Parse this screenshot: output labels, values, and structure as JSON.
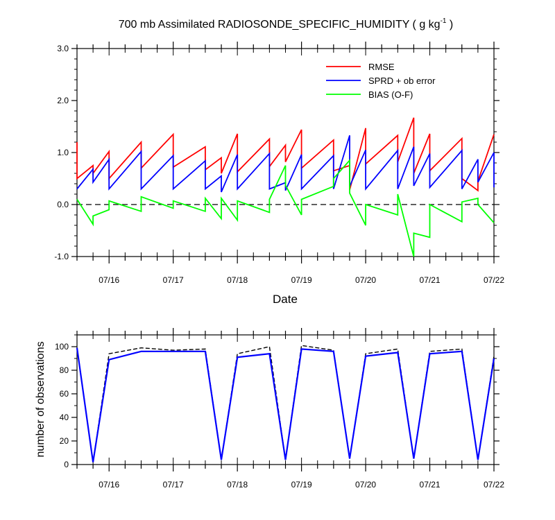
{
  "title": "700 mb Assimilated RADIOSONDE_SPECIFIC_HUMIDITY ( g kg",
  "title_sup": "-1",
  "title_end": " )",
  "xlabel": "Date",
  "ylabel_bottom": "number of observations",
  "date_ticks": [
    "07/16",
    "07/17",
    "07/18",
    "07/19",
    "07/20",
    "07/21",
    "07/22"
  ],
  "colors": {
    "rmse": "#ff0000",
    "sprd": "#0000ff",
    "bias": "#00ff00",
    "obs_used": "#0000ff",
    "obs_poss": "#000000"
  },
  "chart_data": [
    {
      "type": "line",
      "title": "700 mb Assimilated RADIOSONDE_SPECIFIC_HUMIDITY ( g kg-1 )",
      "xlabel": "Date",
      "ylabel": "",
      "xlim": [
        15.5,
        22.0
      ],
      "ylim": [
        -1.0,
        3.0
      ],
      "yticks": [
        -1.0,
        0.0,
        1.0,
        2.0,
        3.0
      ],
      "ytick_labels": [
        "-1.0",
        "0.0",
        "1.0",
        "2.0",
        "3.0"
      ],
      "zero_line": true,
      "legend": [
        "RMSE",
        "SPRD + ob error",
        "BIAS (O-F)"
      ],
      "legend_position": "top-right",
      "series": [
        {
          "name": "RMSE",
          "key": "rmse",
          "points": [
            [
              15.5,
              1.2
            ],
            [
              15.5,
              0.5
            ],
            [
              15.75,
              0.75
            ],
            [
              15.75,
              0.6
            ],
            [
              16.0,
              1.02
            ],
            [
              16.0,
              0.5
            ],
            [
              16.5,
              1.2
            ],
            [
              16.5,
              0.7
            ],
            [
              17.0,
              1.35
            ],
            [
              17.0,
              0.72
            ],
            [
              17.5,
              1.11
            ],
            [
              17.5,
              0.67
            ],
            [
              17.75,
              0.9
            ],
            [
              17.75,
              0.6
            ],
            [
              18.0,
              1.36
            ],
            [
              18.0,
              0.63
            ],
            [
              18.5,
              1.26
            ],
            [
              18.5,
              0.73
            ],
            [
              18.75,
              1.14
            ],
            [
              18.75,
              0.82
            ],
            [
              19.0,
              1.44
            ],
            [
              19.0,
              0.7
            ],
            [
              19.5,
              1.24
            ],
            [
              19.5,
              0.65
            ],
            [
              19.75,
              0.75
            ],
            [
              19.75,
              0.28
            ],
            [
              20.0,
              1.47
            ],
            [
              20.0,
              0.78
            ],
            [
              20.5,
              1.33
            ],
            [
              20.5,
              0.82
            ],
            [
              20.75,
              1.67
            ],
            [
              20.75,
              0.6
            ],
            [
              21.0,
              1.36
            ],
            [
              21.0,
              0.65
            ],
            [
              21.5,
              1.27
            ],
            [
              21.5,
              0.5
            ],
            [
              21.75,
              0.27
            ],
            [
              21.75,
              0.45
            ],
            [
              22.0,
              1.35
            ]
          ]
        },
        {
          "name": "SPRD + ob error",
          "key": "sprd",
          "points": [
            [
              15.5,
              0.3
            ],
            [
              15.75,
              0.68
            ],
            [
              15.75,
              0.43
            ],
            [
              16.0,
              0.87
            ],
            [
              16.0,
              0.3
            ],
            [
              16.5,
              1.02
            ],
            [
              16.5,
              0.3
            ],
            [
              17.0,
              0.94
            ],
            [
              17.0,
              0.3
            ],
            [
              17.5,
              0.84
            ],
            [
              17.5,
              0.3
            ],
            [
              17.75,
              0.55
            ],
            [
              17.75,
              0.24
            ],
            [
              18.0,
              0.96
            ],
            [
              18.0,
              0.3
            ],
            [
              18.5,
              0.98
            ],
            [
              18.5,
              0.3
            ],
            [
              18.75,
              0.42
            ],
            [
              18.75,
              0.27
            ],
            [
              19.0,
              0.96
            ],
            [
              19.0,
              0.3
            ],
            [
              19.5,
              0.94
            ],
            [
              19.5,
              0.3
            ],
            [
              19.75,
              1.33
            ],
            [
              19.75,
              0.35
            ],
            [
              20.0,
              1.05
            ],
            [
              20.0,
              0.3
            ],
            [
              20.5,
              1.04
            ],
            [
              20.5,
              0.3
            ],
            [
              20.75,
              1.11
            ],
            [
              20.75,
              0.36
            ],
            [
              21.0,
              0.98
            ],
            [
              21.0,
              0.33
            ],
            [
              21.5,
              1.04
            ],
            [
              21.5,
              0.3
            ],
            [
              21.75,
              0.87
            ],
            [
              21.75,
              0.43
            ],
            [
              22.0,
              1.0
            ],
            [
              22.0,
              0.33
            ]
          ]
        },
        {
          "name": "BIAS (O-F)",
          "key": "bias",
          "points": [
            [
              15.5,
              0.1
            ],
            [
              15.75,
              -0.38
            ],
            [
              15.75,
              -0.22
            ],
            [
              16.0,
              -0.1
            ],
            [
              16.0,
              0.07
            ],
            [
              16.5,
              -0.13
            ],
            [
              16.5,
              0.15
            ],
            [
              17.0,
              -0.07
            ],
            [
              17.0,
              0.07
            ],
            [
              17.5,
              -0.13
            ],
            [
              17.5,
              0.12
            ],
            [
              17.75,
              -0.27
            ],
            [
              17.75,
              0.12
            ],
            [
              18.0,
              -0.3
            ],
            [
              18.0,
              0.07
            ],
            [
              18.5,
              -0.15
            ],
            [
              18.5,
              0.1
            ],
            [
              18.75,
              0.75
            ],
            [
              18.75,
              0.37
            ],
            [
              19.0,
              -0.2
            ],
            [
              19.0,
              0.1
            ],
            [
              19.5,
              0.35
            ],
            [
              19.5,
              0.5
            ],
            [
              19.75,
              0.85
            ],
            [
              19.75,
              0.22
            ],
            [
              20.0,
              -0.4
            ],
            [
              20.0,
              0.0
            ],
            [
              20.5,
              -0.2
            ],
            [
              20.5,
              0.2
            ],
            [
              20.75,
              -1.0
            ],
            [
              20.75,
              -0.55
            ],
            [
              21.0,
              -0.63
            ],
            [
              21.0,
              0.0
            ],
            [
              21.5,
              -0.33
            ],
            [
              21.5,
              0.05
            ],
            [
              21.75,
              0.12
            ],
            [
              21.75,
              0.0
            ],
            [
              22.0,
              -0.35
            ]
          ]
        }
      ]
    },
    {
      "type": "line",
      "title": "",
      "xlabel": "",
      "ylabel": "number of observations",
      "xlim": [
        15.5,
        22.0
      ],
      "ylim": [
        0,
        110
      ],
      "yticks": [
        0,
        20,
        40,
        60,
        80,
        100
      ],
      "ytick_labels": [
        "0",
        "20",
        "40",
        "60",
        "80",
        "100"
      ],
      "series": [
        {
          "name": "possible",
          "key": "obs_poss",
          "dashed": true,
          "points": [
            [
              15.5,
              99
            ],
            [
              15.75,
              2
            ],
            [
              16.0,
              94
            ],
            [
              16.5,
              99
            ],
            [
              17.0,
              97
            ],
            [
              17.5,
              98
            ],
            [
              17.75,
              4
            ],
            [
              18.0,
              94
            ],
            [
              18.5,
              100
            ],
            [
              18.75,
              4
            ],
            [
              19.0,
              101
            ],
            [
              19.5,
              97
            ],
            [
              19.75,
              5
            ],
            [
              20.0,
              94
            ],
            [
              20.5,
              98
            ],
            [
              20.75,
              5
            ],
            [
              21.0,
              96
            ],
            [
              21.5,
              98
            ],
            [
              21.75,
              4
            ],
            [
              22.0,
              92
            ]
          ]
        },
        {
          "name": "used",
          "key": "obs_used",
          "dashed": false,
          "points": [
            [
              15.5,
              99
            ],
            [
              15.75,
              2
            ],
            [
              16.0,
              89
            ],
            [
              16.5,
              96
            ],
            [
              17.0,
              96
            ],
            [
              17.5,
              96
            ],
            [
              17.75,
              4
            ],
            [
              18.0,
              91
            ],
            [
              18.5,
              94
            ],
            [
              18.75,
              4
            ],
            [
              19.0,
              98
            ],
            [
              19.5,
              96
            ],
            [
              19.75,
              5
            ],
            [
              20.0,
              92
            ],
            [
              20.5,
              95
            ],
            [
              20.75,
              5
            ],
            [
              21.0,
              94
            ],
            [
              21.5,
              96
            ],
            [
              21.75,
              4
            ],
            [
              22.0,
              90
            ]
          ]
        }
      ]
    }
  ]
}
